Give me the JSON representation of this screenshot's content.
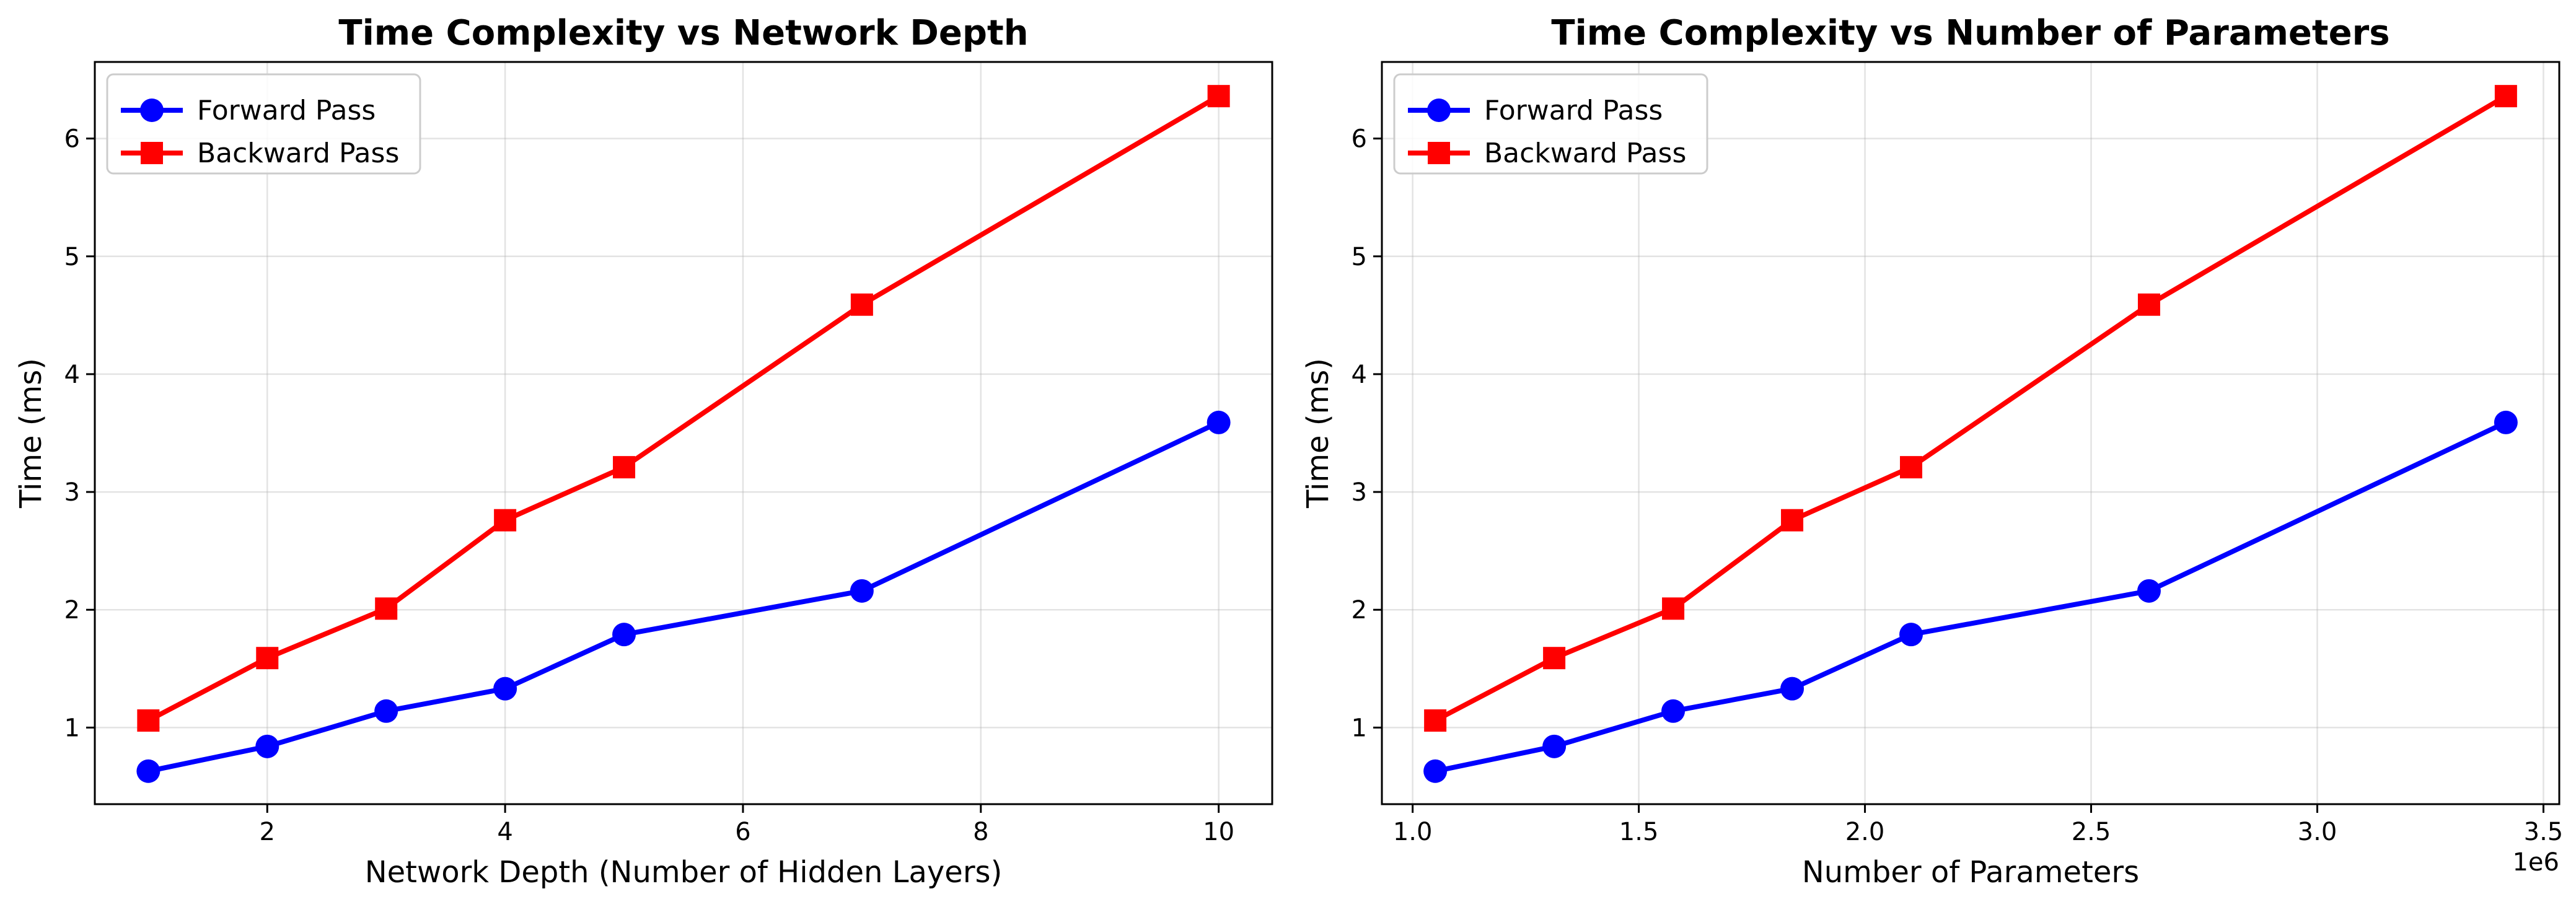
{
  "chart_data": [
    {
      "type": "line",
      "title": "Time Complexity vs Network Depth",
      "xlabel": "Network Depth (Number of Hidden Layers)",
      "ylabel": "Time (ms)",
      "x": [
        1,
        2,
        3,
        4,
        5,
        7,
        10
      ],
      "xlim": [
        0.55,
        10.45
      ],
      "ylim": [
        0.35,
        6.65
      ],
      "xticks": [
        2,
        4,
        6,
        8,
        10
      ],
      "xtick_labels": [
        "2",
        "4",
        "6",
        "8",
        "10"
      ],
      "yticks": [
        1,
        2,
        3,
        4,
        5,
        6
      ],
      "ytick_labels": [
        "1",
        "2",
        "3",
        "4",
        "5",
        "6"
      ],
      "x_offset_label": "",
      "grid": true,
      "legend_position": "upper-left",
      "series": [
        {
          "name": "Forward Pass",
          "color": "#0000ff",
          "marker": "circle",
          "values": [
            0.63,
            0.84,
            1.14,
            1.33,
            1.79,
            2.16,
            3.59
          ]
        },
        {
          "name": "Backward Pass",
          "color": "#ff0000",
          "marker": "square",
          "values": [
            1.06,
            1.59,
            2.01,
            2.76,
            3.21,
            4.59,
            6.36
          ]
        }
      ]
    },
    {
      "type": "line",
      "title": "Time Complexity vs Number of Parameters",
      "xlabel": "Number of Parameters",
      "ylabel": "Time (ms)",
      "x": [
        1050000,
        1313000,
        1576000,
        1839000,
        2102000,
        2628000,
        3417000
      ],
      "xlim": [
        932000,
        3535000
      ],
      "ylim": [
        0.35,
        6.65
      ],
      "xticks": [
        1000000,
        1500000,
        2000000,
        2500000,
        3000000,
        3500000
      ],
      "xtick_labels": [
        "1.0",
        "1.5",
        "2.0",
        "2.5",
        "3.0",
        "3.5"
      ],
      "yticks": [
        1,
        2,
        3,
        4,
        5,
        6
      ],
      "ytick_labels": [
        "1",
        "2",
        "3",
        "4",
        "5",
        "6"
      ],
      "x_offset_label": "1e6",
      "grid": true,
      "legend_position": "upper-left",
      "series": [
        {
          "name": "Forward Pass",
          "color": "#0000ff",
          "marker": "circle",
          "values": [
            0.63,
            0.84,
            1.14,
            1.33,
            1.79,
            2.16,
            3.59
          ]
        },
        {
          "name": "Backward Pass",
          "color": "#ff0000",
          "marker": "square",
          "values": [
            1.06,
            1.59,
            2.01,
            2.76,
            3.21,
            4.59,
            6.36
          ]
        }
      ]
    }
  ]
}
